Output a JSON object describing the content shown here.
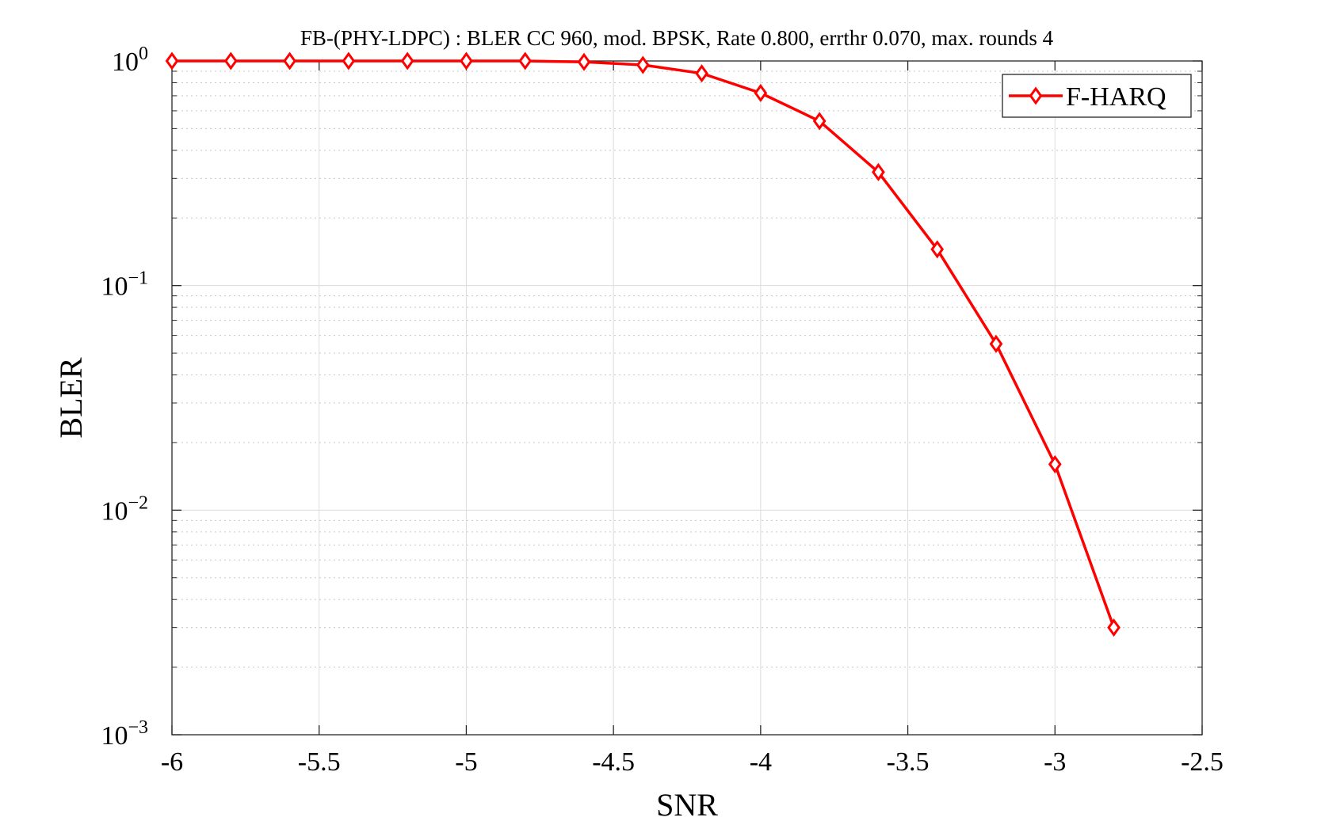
{
  "chart_data": {
    "type": "line",
    "title": "FB-(PHY-LDPC) : BLER CC 960, mod. BPSK, Rate 0.800, errthr 0.070, max. rounds 4",
    "xlabel": "SNR",
    "ylabel": "BLER",
    "xlim": [
      -6,
      -2.5
    ],
    "ylim": [
      0.001,
      1
    ],
    "yscale": "log",
    "grid": true,
    "legend_position": "top-right",
    "x_ticks": [
      -6,
      -5.5,
      -5,
      -4.5,
      -4,
      -3.5,
      -3,
      -2.5
    ],
    "x_tick_labels": [
      "-6",
      "-5.5",
      "-5",
      "-4.5",
      "-4",
      "-3.5",
      "-3",
      "-2.5"
    ],
    "y_ticks": [
      {
        "value": 1,
        "base": "10",
        "exp": "0"
      },
      {
        "value": 0.1,
        "base": "10",
        "exp": "−1"
      },
      {
        "value": 0.01,
        "base": "10",
        "exp": "−2"
      },
      {
        "value": 0.001,
        "base": "10",
        "exp": "−3"
      }
    ],
    "series": [
      {
        "name": "F-HARQ",
        "color": "#ff0000",
        "marker": "diamond",
        "x": [
          -6,
          -5.8,
          -5.6,
          -5.4,
          -5.2,
          -5,
          -4.8,
          -4.6,
          -4.4,
          -4.2,
          -4,
          -3.8,
          -3.6,
          -3.4,
          -3.2,
          -3,
          -2.8
        ],
        "y": [
          1.0,
          1.0,
          1.0,
          1.0,
          1.0,
          1.0,
          1.0,
          0.99,
          0.96,
          0.88,
          0.72,
          0.54,
          0.32,
          0.145,
          0.055,
          0.016,
          0.003
        ]
      }
    ]
  }
}
